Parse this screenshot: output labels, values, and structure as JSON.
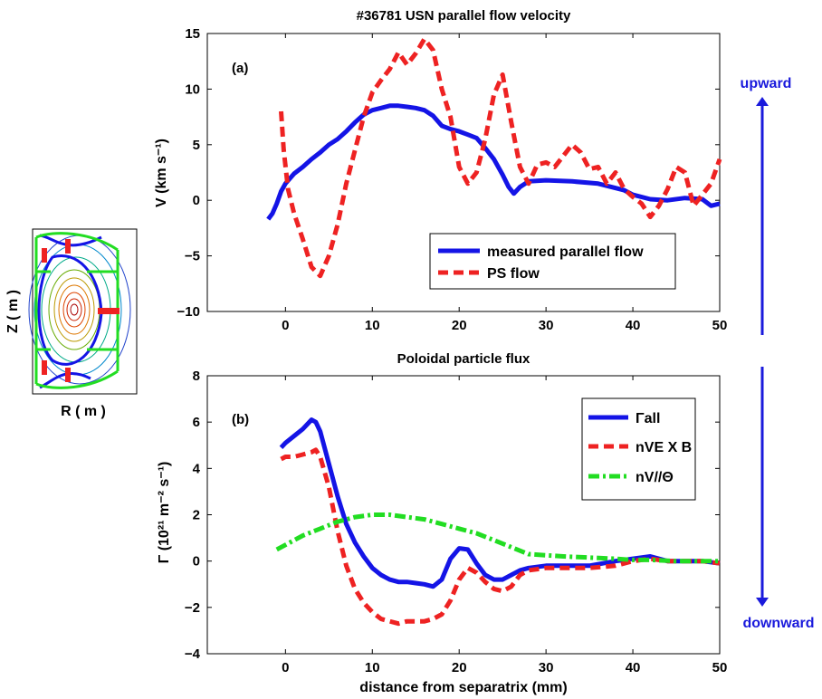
{
  "chart_data": [
    {
      "type": "line",
      "panel_label": "(a)",
      "title": "#36781 USN parallel flow velocity",
      "ylabel": "V (km s⁻¹)",
      "xlabel": "",
      "xlim": [
        -9,
        50
      ],
      "ylim": [
        -10,
        15
      ],
      "xticks": [
        "0",
        "10",
        "20",
        "30",
        "40",
        "50"
      ],
      "yticks": [
        "15",
        "10",
        "5",
        "0",
        "−5",
        "−10"
      ],
      "grid": false,
      "legend_position": "lower-right",
      "series": [
        {
          "name": "measured parallel flow",
          "color": "#1414e6",
          "style": "solid",
          "x": [
            -2,
            -1.5,
            -1,
            -0.5,
            0,
            1,
            2,
            3,
            4,
            5,
            6,
            7,
            8,
            9,
            10,
            11,
            12,
            13,
            14,
            15,
            16,
            17,
            18,
            19,
            20,
            21,
            22,
            23,
            24,
            25,
            25.7,
            26.3,
            27,
            28,
            30,
            33,
            36,
            39,
            40,
            42,
            44,
            46,
            48,
            49,
            50
          ],
          "y": [
            -1.7,
            -1.2,
            -0.3,
            0.8,
            1.5,
            2.4,
            3.0,
            3.7,
            4.3,
            5.0,
            5.5,
            6.2,
            7.0,
            7.7,
            8.1,
            8.3,
            8.5,
            8.5,
            8.4,
            8.3,
            8.1,
            7.6,
            6.7,
            6.4,
            6.2,
            5.9,
            5.6,
            4.7,
            3.7,
            2.3,
            1.2,
            0.6,
            1.2,
            1.7,
            1.8,
            1.7,
            1.5,
            0.9,
            0.5,
            0.1,
            0.0,
            0.2,
            0.1,
            -0.5,
            -0.3
          ]
        },
        {
          "name": "PS flow",
          "color": "#ee2222",
          "style": "dashed",
          "x": [
            -0.5,
            -0.2,
            0.3,
            1,
            2,
            3,
            4,
            5,
            6,
            7,
            8,
            9,
            10,
            11,
            12,
            13,
            14,
            15,
            16,
            17,
            18,
            19,
            20,
            21,
            22,
            23,
            24,
            25,
            26,
            27,
            28,
            29,
            30,
            31,
            32,
            33,
            34,
            35,
            36,
            37,
            38,
            39,
            40,
            41,
            42,
            43,
            44,
            45,
            46,
            47,
            48,
            49,
            50
          ],
          "y": [
            8.0,
            4.5,
            1.0,
            -1.2,
            -3.5,
            -6.0,
            -6.8,
            -5.0,
            -2.2,
            1.5,
            4.5,
            7.5,
            9.7,
            10.8,
            11.8,
            13.3,
            12.2,
            13.2,
            14.5,
            13.5,
            10.0,
            7.5,
            3.0,
            1.5,
            2.5,
            5.5,
            9.5,
            11.3,
            7.0,
            3.0,
            1.5,
            3.2,
            3.4,
            3.0,
            4.0,
            5.0,
            4.3,
            2.8,
            3.0,
            1.5,
            2.5,
            1.0,
            0.3,
            -0.3,
            -1.5,
            -0.5,
            1.0,
            3.0,
            2.5,
            -0.5,
            0.5,
            1.5,
            3.7
          ]
        }
      ]
    },
    {
      "type": "line",
      "panel_label": "(b)",
      "title": "Poloidal particle flux",
      "ylabel": "Γ (10²¹ m⁻² s⁻¹)",
      "xlabel": "distance from separatrix (mm)",
      "xlim": [
        -9,
        50
      ],
      "ylim": [
        -4,
        8
      ],
      "xticks": [
        "0",
        "10",
        "20",
        "30",
        "40",
        "50"
      ],
      "yticks": [
        "8",
        "6",
        "4",
        "2",
        "0",
        "−2",
        "−4"
      ],
      "grid": false,
      "legend_position": "top-right",
      "series": [
        {
          "name": "Γall",
          "color": "#1414e6",
          "style": "solid",
          "x": [
            -0.5,
            0,
            1,
            2,
            3,
            3.5,
            4,
            5,
            6,
            7,
            8,
            9,
            10,
            11,
            12,
            13,
            14,
            15,
            16,
            17,
            18,
            19,
            20,
            21,
            22,
            23,
            24,
            25,
            26,
            27,
            28,
            30,
            35,
            38,
            40,
            42,
            44,
            46,
            48,
            50
          ],
          "y": [
            4.9,
            5.1,
            5.4,
            5.7,
            6.1,
            6.0,
            5.6,
            4.2,
            2.8,
            1.6,
            0.8,
            0.2,
            -0.3,
            -0.6,
            -0.8,
            -0.9,
            -0.9,
            -0.95,
            -1.0,
            -1.1,
            -0.8,
            0.1,
            0.55,
            0.5,
            -0.1,
            -0.6,
            -0.8,
            -0.8,
            -0.6,
            -0.4,
            -0.3,
            -0.2,
            -0.2,
            0.0,
            0.1,
            0.2,
            0.0,
            0.0,
            0.0,
            -0.1
          ]
        },
        {
          "name": "nVE X B",
          "color": "#ee2222",
          "style": "dashed",
          "x": [
            -0.5,
            0,
            1,
            2,
            3,
            3.5,
            4,
            5,
            6,
            7,
            8,
            9,
            10,
            11,
            12,
            13,
            14,
            15,
            16,
            17,
            18,
            19,
            20,
            21,
            22,
            23,
            24,
            25,
            26,
            27,
            28,
            30,
            35,
            38,
            40,
            42,
            44,
            46,
            48,
            50
          ],
          "y": [
            4.4,
            4.5,
            4.5,
            4.6,
            4.7,
            4.8,
            4.5,
            3.2,
            1.3,
            -0.2,
            -1.2,
            -1.8,
            -2.2,
            -2.5,
            -2.6,
            -2.7,
            -2.6,
            -2.6,
            -2.6,
            -2.5,
            -2.3,
            -1.7,
            -0.8,
            -0.3,
            -0.5,
            -0.9,
            -1.2,
            -1.3,
            -1.1,
            -0.6,
            -0.4,
            -0.3,
            -0.3,
            -0.2,
            0.0,
            0.1,
            0.0,
            0.0,
            0.0,
            -0.1
          ]
        },
        {
          "name": "nV//Θ",
          "color": "#22dd22",
          "style": "dashdot",
          "x": [
            -1,
            0,
            2,
            4,
            6,
            8,
            10,
            12,
            14,
            16,
            18,
            20,
            22,
            24,
            26,
            28,
            30,
            32,
            35,
            38,
            40,
            42,
            45,
            48,
            50
          ],
          "y": [
            0.5,
            0.7,
            1.1,
            1.4,
            1.7,
            1.9,
            2.0,
            2.0,
            1.9,
            1.8,
            1.6,
            1.4,
            1.2,
            0.9,
            0.6,
            0.3,
            0.25,
            0.2,
            0.15,
            0.1,
            0.05,
            0.05,
            0.0,
            0.0,
            0.0
          ]
        }
      ]
    }
  ],
  "inset": {
    "xlabel": "R ( m )",
    "ylabel": "Z ( m )"
  },
  "arrows": {
    "up_label": "upward",
    "down_label": "downward",
    "color": "#1a1adc"
  }
}
